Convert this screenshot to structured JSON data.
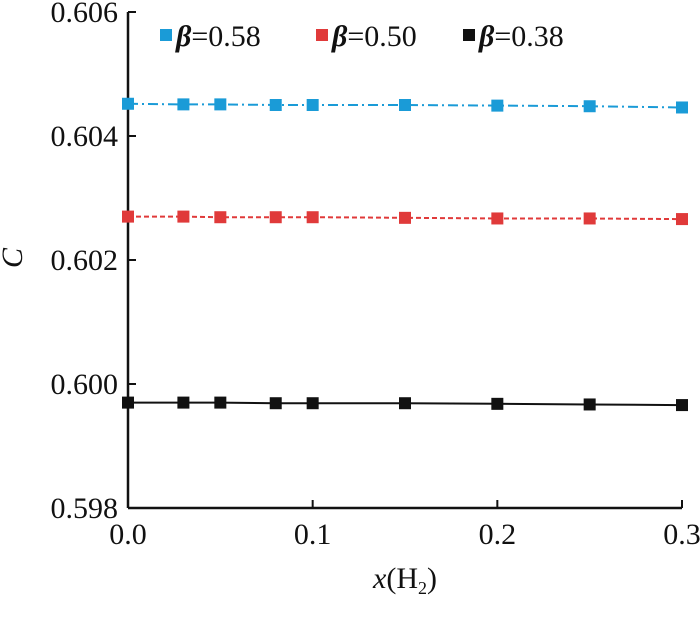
{
  "chart_data": {
    "type": "line",
    "title": "",
    "xlabel": {
      "symbol": "x",
      "paren_open": "(",
      "element": "H",
      "subscript": "2",
      "paren_close": ")"
    },
    "ylabel": "C",
    "xlim": [
      0.0,
      0.3
    ],
    "ylim": [
      0.598,
      0.606
    ],
    "x_ticks": [
      "0.0",
      "0.1",
      "0.2",
      "0.3"
    ],
    "y_ticks": [
      "0.598",
      "0.600",
      "0.602",
      "0.604",
      "0.606"
    ],
    "grid": false,
    "legend_position": "top",
    "x": [
      0.0,
      0.03,
      0.05,
      0.08,
      0.1,
      0.15,
      0.2,
      0.25,
      0.3
    ],
    "series": [
      {
        "name": "β=0.58",
        "beta": "β",
        "rest": "=0.58",
        "color": "#1a9bd7",
        "line_style": "dash-dot",
        "values": [
          0.60452,
          0.60451,
          0.60451,
          0.6045,
          0.6045,
          0.6045,
          0.60449,
          0.60448,
          0.60446
        ]
      },
      {
        "name": "β=0.50",
        "beta": "β",
        "rest": "=0.50",
        "color": "#e03a3a",
        "line_style": "dashed",
        "values": [
          0.6027,
          0.6027,
          0.60269,
          0.60269,
          0.60269,
          0.60268,
          0.60267,
          0.60267,
          0.60266
        ]
      },
      {
        "name": "β=0.38",
        "beta": "β",
        "rest": "=0.38",
        "color": "#111111",
        "line_style": "solid",
        "values": [
          0.5997,
          0.5997,
          0.5997,
          0.59969,
          0.59969,
          0.59969,
          0.59968,
          0.59967,
          0.59966
        ]
      }
    ]
  }
}
